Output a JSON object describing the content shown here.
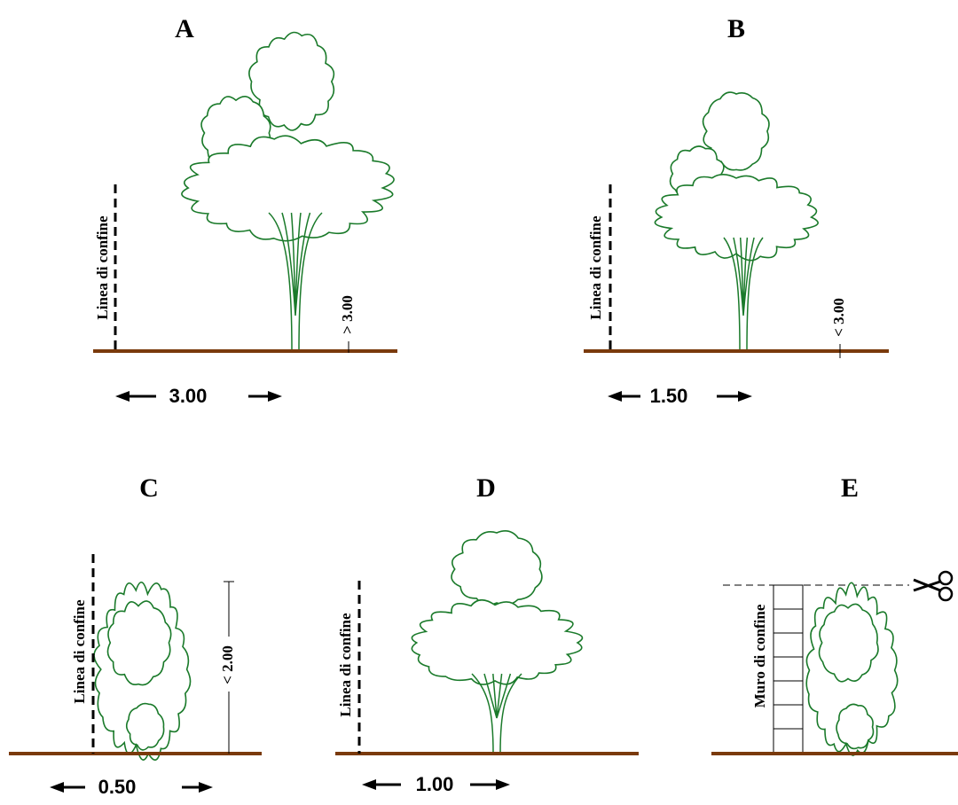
{
  "panels": [
    {
      "label": "A",
      "boundary": "Linea di confine",
      "height": "> 3.00",
      "distance": "3.00"
    },
    {
      "label": "B",
      "boundary": "Linea di confine",
      "height": "< 3.00",
      "distance": "1.50"
    },
    {
      "label": "C",
      "boundary": "Linea di confine",
      "height": "< 2.00",
      "distance": "0.50"
    },
    {
      "label": "D",
      "boundary": "Linea di confine",
      "distance": "1.00"
    },
    {
      "label": "E",
      "boundary": "Muro di confine"
    }
  ]
}
